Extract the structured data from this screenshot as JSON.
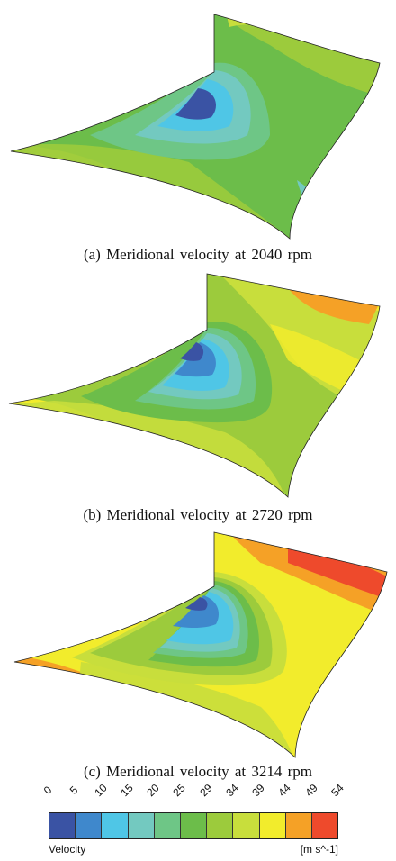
{
  "figure": {
    "panels": [
      {
        "caption": "(a) Meridional velocity at 2040 rpm"
      },
      {
        "caption": "(b) Meridional velocity at 2720 rpm"
      },
      {
        "caption": "(c) Meridional velocity at 3214 rpm"
      }
    ],
    "legend": {
      "title": "Velocity",
      "unit": "[m s^-1]",
      "ticks": [
        "0",
        "5",
        "10",
        "15",
        "20",
        "25",
        "29",
        "34",
        "39",
        "44",
        "49",
        "54"
      ],
      "colors": [
        "#3a53a4",
        "#3f88cc",
        "#4fc6e6",
        "#73c9c0",
        "#6ec686",
        "#6cbd4a",
        "#9ccb3c",
        "#c8de3c",
        "#f2ec2c",
        "#f5a126",
        "#ee4a2c"
      ]
    }
  }
}
